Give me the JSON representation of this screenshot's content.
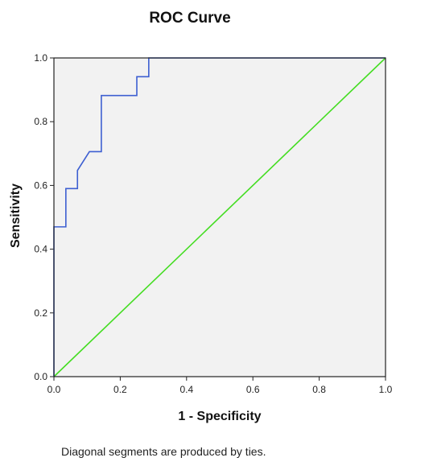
{
  "chart_data": {
    "type": "line",
    "title": "ROC Curve",
    "xlabel": "1 - Specificity",
    "ylabel": "Sensitivity",
    "xlim": [
      0,
      1
    ],
    "ylim": [
      0,
      1
    ],
    "xticks": [
      "0.0",
      "0.2",
      "0.4",
      "0.6",
      "0.8",
      "1.0"
    ],
    "yticks": [
      "0.0",
      "0.2",
      "0.4",
      "0.6",
      "0.8",
      "1.0"
    ],
    "grid": false,
    "legend": "none",
    "plot_background": "#f2f2f2",
    "series": [
      {
        "color": "#3d5fd1",
        "x": [
          0,
          0,
          0.036,
          0.036,
          0.071,
          0.071,
          0.107,
          0.107,
          0.143,
          0.143,
          0.25,
          0.25,
          0.286,
          0.286,
          1.0
        ],
        "y": [
          0,
          0.47,
          0.47,
          0.59,
          0.59,
          0.647,
          0.706,
          0.706,
          0.706,
          0.882,
          0.882,
          0.941,
          0.941,
          1.0,
          1.0
        ]
      },
      {
        "color": "#44dd22",
        "x": [
          0,
          1
        ],
        "y": [
          0,
          1
        ]
      }
    ]
  },
  "footnote": "Diagonal segments are produced by ties."
}
